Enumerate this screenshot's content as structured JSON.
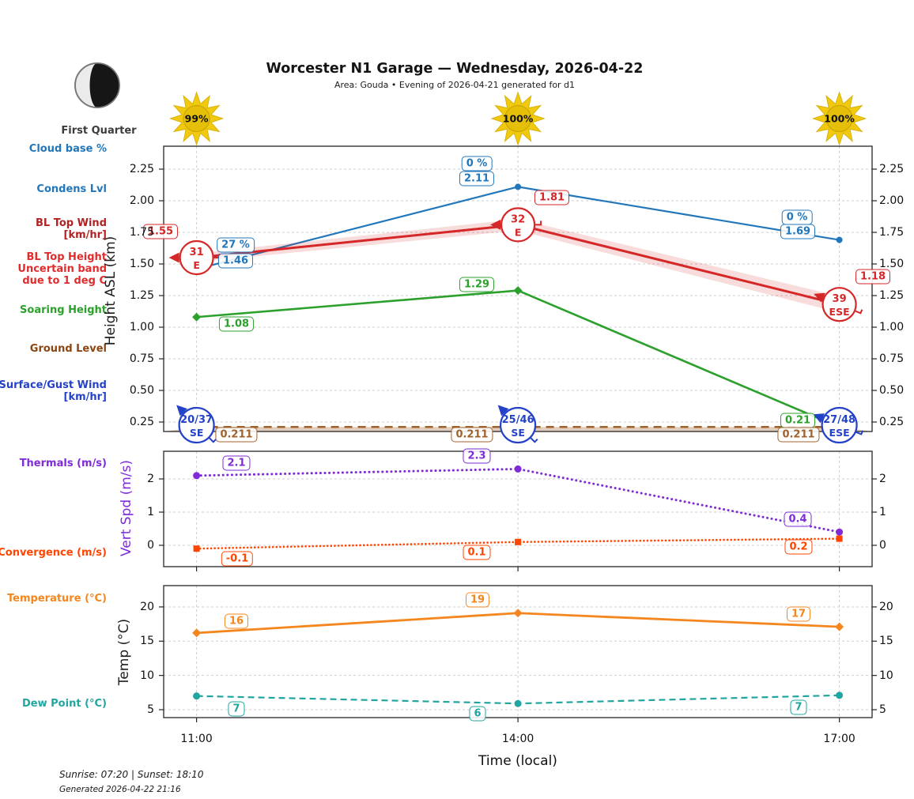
{
  "header": {
    "title": "Worcester N1 Garage — Wednesday, 2026-04-22",
    "subtitle": "Area: Gouda • Evening of 2026-04-21 generated for d1",
    "moon": {
      "phase": "First Quarter"
    },
    "suns": [
      {
        "percent": "99%"
      },
      {
        "percent": "100%"
      },
      {
        "percent": "100%"
      }
    ]
  },
  "legend_labels": [
    {
      "id": "cloud-base",
      "text": "Cloud base %",
      "color": "#2277bb"
    },
    {
      "id": "condens-lvl",
      "text": "Condens Lvl",
      "color": "#2277bb"
    },
    {
      "id": "bl-top-wind",
      "text": "BL Top Wind\n[km/hr]",
      "color": "#b22222"
    },
    {
      "id": "bl-top-height",
      "text": "BL Top Height\nUncertain band\ndue to 1 deg C",
      "color": "#e02c2c"
    },
    {
      "id": "soaring-height",
      "text": "Soaring Height",
      "color": "#2ca02c"
    },
    {
      "id": "ground-level",
      "text": "Ground Level",
      "color": "#8b4513"
    },
    {
      "id": "surface-gust-wind",
      "text": "Surface/Gust Wind\n[km/hr]",
      "color": "#2442c8"
    },
    {
      "id": "thermals",
      "text": "Thermals (m/s)",
      "color": "#7f2bd9"
    },
    {
      "id": "convergence",
      "text": "Convergence (m/s)",
      "color": "#ff4500"
    },
    {
      "id": "temperature",
      "text": "Temperature (°C)",
      "color": "#f5861d"
    },
    {
      "id": "dew-point",
      "text": "Dew Point (°C)",
      "color": "#21a5a0"
    }
  ],
  "xaxis": {
    "label": "Time (local)",
    "hours": [
      11,
      14,
      17
    ],
    "tick_labels": [
      "11:00",
      "14:00",
      "17:00"
    ]
  },
  "footer": {
    "sun_times": "Sunrise: 07:20 | Sunset: 18:10",
    "generated": "Generated 2026-04-22 21:16"
  },
  "chart_data": [
    {
      "id": "heights",
      "type": "line",
      "ylabel": "Height ASL (km)",
      "yticks": [
        0.25,
        0.5,
        0.75,
        1.0,
        1.25,
        1.5,
        1.75,
        2.0,
        2.25
      ],
      "ytick_labels": [
        "0.25",
        "0.50",
        "0.75",
        "1.00",
        "1.25",
        "1.50",
        "1.75",
        "2.00",
        "2.25"
      ],
      "x": [
        11,
        14,
        17
      ],
      "series": [
        {
          "name": "Condens Lvl",
          "color": "#2277bb",
          "style": "solid",
          "marker": "circle",
          "values": [
            1.46,
            2.11,
            1.69
          ],
          "point_labels": [
            "1.46",
            "2.11",
            "1.69"
          ]
        },
        {
          "name": "BL Top Height",
          "color": "#d62728",
          "style": "solid",
          "marker": "none",
          "values": [
            1.55,
            1.81,
            1.18
          ],
          "point_labels": [
            "1.55",
            "1.81",
            "1.18"
          ],
          "band": [
            0.035,
            0.045,
            0.065
          ]
        },
        {
          "name": "Soaring Height",
          "color": "#2ca02c",
          "style": "solid",
          "marker": "diamond",
          "values": [
            1.08,
            1.29,
            0.21
          ],
          "point_labels": [
            "1.08",
            "1.29",
            "0.21"
          ]
        },
        {
          "name": "Ground Level",
          "color": "#a0622d",
          "style": "dashed",
          "marker": "none",
          "values": [
            0.211,
            0.211,
            0.211
          ],
          "point_labels": [
            "0.211",
            "0.211",
            "0.211"
          ],
          "fill_to_bottom": true
        }
      ],
      "cloud_base_labels": [
        "27 %",
        "0 %",
        "0 %"
      ],
      "wind": {
        "bl_top": {
          "color": "#d62728",
          "entries": [
            {
              "speed": "31",
              "dir": "E"
            },
            {
              "speed": "32",
              "dir": "E"
            },
            {
              "speed": "39",
              "dir": "ESE"
            }
          ]
        },
        "surface": {
          "color": "#2442c8",
          "entries": [
            {
              "speed": "20/37",
              "dir": "SE"
            },
            {
              "speed": "25/46",
              "dir": "SE"
            },
            {
              "speed": "27/48",
              "dir": "ESE"
            }
          ]
        }
      }
    },
    {
      "id": "vert-speed",
      "type": "line",
      "ylabel": "Vert Spd (m/s)",
      "yticks": [
        0,
        1,
        2
      ],
      "ytick_labels": [
        "0",
        "1",
        "2"
      ],
      "x": [
        11,
        14,
        17
      ],
      "series": [
        {
          "name": "Thermals (m/s)",
          "color": "#7f2bd9",
          "style": "dotted",
          "marker": "circle",
          "values": [
            2.1,
            2.3,
            0.4
          ],
          "point_labels": [
            "2.1",
            "2.3",
            "0.4"
          ]
        },
        {
          "name": "Convergence (m/s)",
          "color": "#ff4500",
          "style": "dotted",
          "marker": "square",
          "values": [
            -0.1,
            0.1,
            0.2
          ],
          "point_labels": [
            "-0.1",
            "0.1",
            "0.2"
          ]
        }
      ]
    },
    {
      "id": "temperature",
      "type": "line",
      "ylabel": "Temp (°C)",
      "yticks": [
        5,
        10,
        15,
        20
      ],
      "ytick_labels": [
        "5",
        "10",
        "15",
        "20"
      ],
      "x": [
        11,
        14,
        17
      ],
      "series": [
        {
          "name": "Temperature (°C)",
          "color": "#f5861d",
          "style": "solid",
          "marker": "diamond",
          "values": [
            16.2,
            19.1,
            17.1
          ],
          "point_labels": [
            "16",
            "19",
            "17"
          ]
        },
        {
          "name": "Dew Point (°C)",
          "color": "#21a5a0",
          "style": "dashed",
          "marker": "circle",
          "values": [
            7.0,
            5.9,
            7.1
          ],
          "point_labels": [
            "7",
            "6",
            "7"
          ]
        }
      ]
    }
  ]
}
